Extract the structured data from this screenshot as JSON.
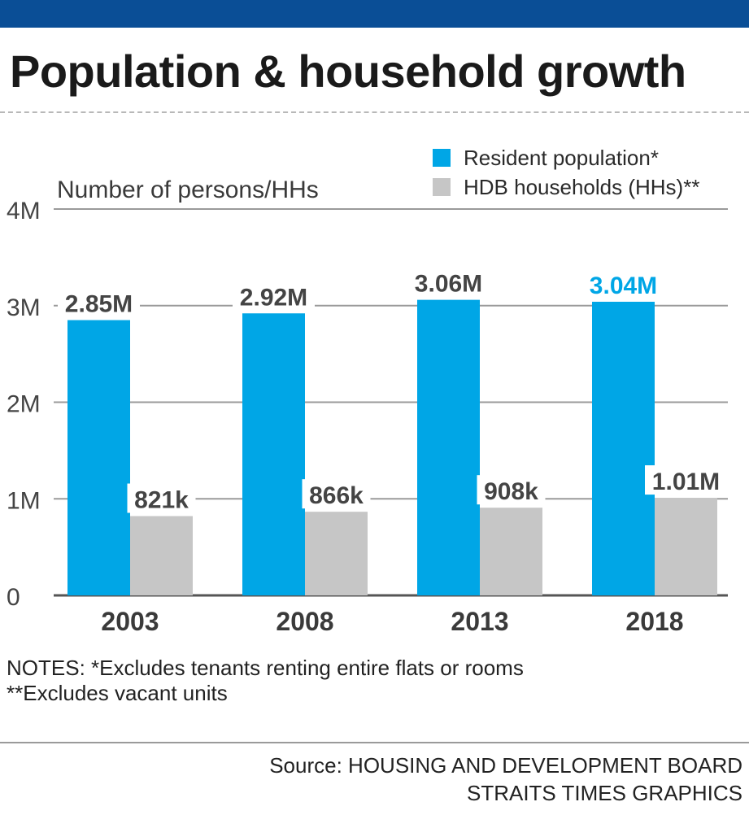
{
  "title": "Population & household growth",
  "chart_data": {
    "type": "bar",
    "ylabel": "Number of persons/HHs",
    "categories": [
      "2003",
      "2008",
      "2013",
      "2018"
    ],
    "ylim": [
      0,
      4000000
    ],
    "yticks": [
      {
        "value": 0,
        "label": "0"
      },
      {
        "value": 1000000,
        "label": "1M"
      },
      {
        "value": 2000000,
        "label": "2M"
      },
      {
        "value": 3000000,
        "label": "3M"
      },
      {
        "value": 4000000,
        "label": "4M"
      }
    ],
    "series": [
      {
        "name": "Resident population*",
        "color": "#00a6e6",
        "values": [
          2850000,
          2920000,
          3060000,
          3040000
        ],
        "labels": [
          "2.85M",
          "2.92M",
          "3.06M",
          "3.04M"
        ]
      },
      {
        "name": "HDB households (HHs)**",
        "color": "#c6c6c6",
        "values": [
          821000,
          866000,
          908000,
          1010000
        ],
        "labels": [
          "821k",
          "866k",
          "908k",
          "1.01M"
        ]
      }
    ],
    "highlight_label_color": "#00a6e6",
    "label_color": "#444444",
    "grid": true,
    "legend_position": "top-right"
  },
  "notes": {
    "line1": "NOTES: *Excludes tenants renting entire flats or rooms",
    "line2": "**Excludes vacant units"
  },
  "source": {
    "line1": "Source: HOUSING AND DEVELOPMENT BOARD",
    "line2": "STRAITS TIMES GRAPHICS"
  }
}
